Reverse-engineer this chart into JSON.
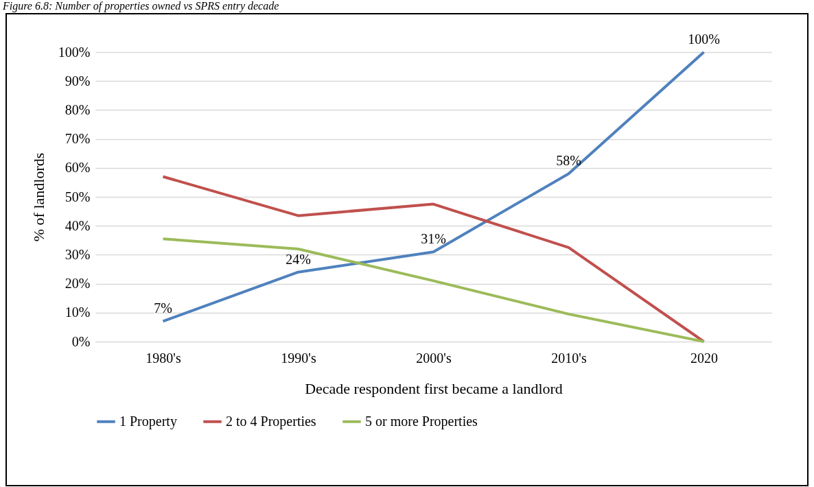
{
  "chart_data": {
    "type": "line",
    "title": "Figure 6.8: Number of properties owned vs SPRS entry decade",
    "xlabel": "Decade respondent first became a landlord",
    "ylabel": "% of landlords",
    "categories": [
      "1980's",
      "1990's",
      "2000's",
      "2010's",
      "2020"
    ],
    "series": [
      {
        "name": "1 Property",
        "color": "#4f81bd",
        "values": [
          7,
          24,
          31,
          58,
          100
        ],
        "value_labels": [
          "7%",
          "24%",
          "31%",
          "58%",
          "100%"
        ]
      },
      {
        "name": "2 to 4 Properties",
        "color": "#c0504d",
        "values": [
          57,
          43.5,
          47.5,
          32.5,
          0
        ]
      },
      {
        "name": "5 or more Properties",
        "color": "#9bbb59",
        "values": [
          35.5,
          32,
          21,
          9.5,
          0
        ]
      }
    ],
    "ylim": [
      0,
      100
    ],
    "yticks": [
      {
        "value": 0,
        "label": "0%"
      },
      {
        "value": 10,
        "label": "10%"
      },
      {
        "value": 20,
        "label": "20%"
      },
      {
        "value": 30,
        "label": "30%"
      },
      {
        "value": 40,
        "label": "40%"
      },
      {
        "value": 50,
        "label": "50%"
      },
      {
        "value": 60,
        "label": "60%"
      },
      {
        "value": 70,
        "label": "70%"
      },
      {
        "value": 80,
        "label": "80%"
      },
      {
        "value": 90,
        "label": "90%"
      },
      {
        "value": 100,
        "label": "100%"
      }
    ],
    "grid": "y",
    "legend": "bottom",
    "marker": "none",
    "line_style": "solid"
  }
}
